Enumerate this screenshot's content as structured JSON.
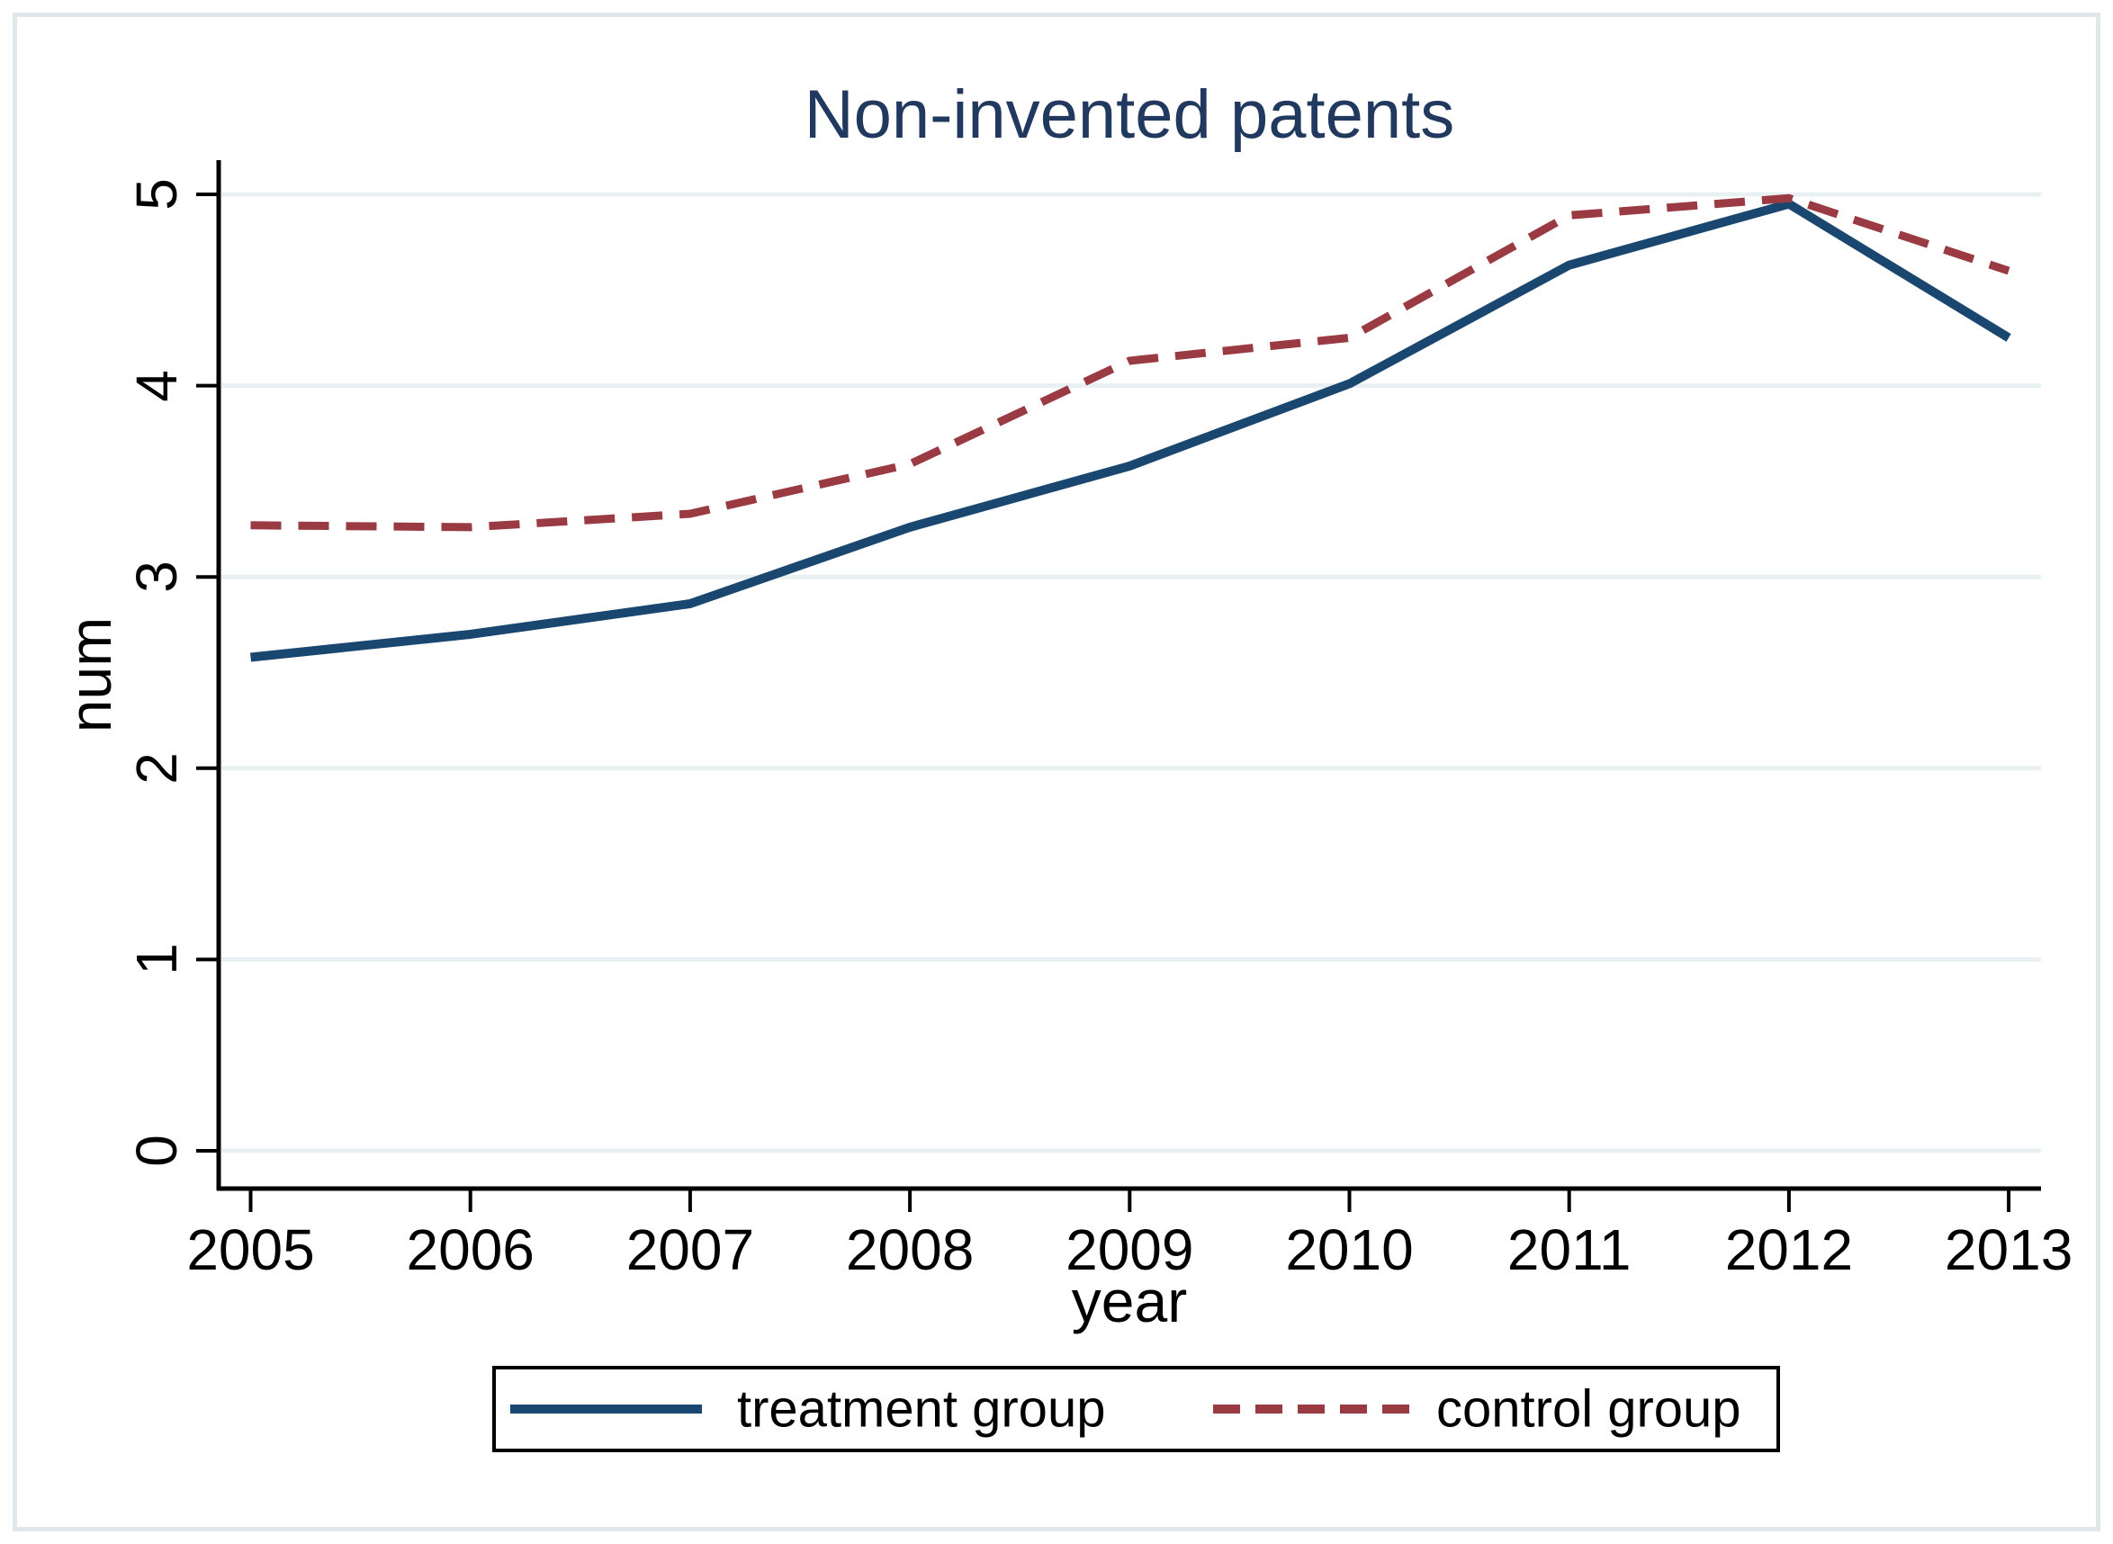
{
  "title": "Non-invented patents",
  "chart_data": {
    "type": "line",
    "title": "Non-invented patents",
    "xlabel": "year",
    "ylabel": "num",
    "categories": [
      "2005",
      "2006",
      "2007",
      "2008",
      "2009",
      "2010",
      "2011",
      "2012",
      "2013"
    ],
    "x": [
      2005,
      2006,
      2007,
      2008,
      2009,
      2010,
      2011,
      2012,
      2013
    ],
    "y_ticks": [
      0,
      1,
      2,
      3,
      4,
      5
    ],
    "y_tick_labels": [
      "0",
      "1",
      "2",
      "3",
      "4",
      "5"
    ],
    "ylim": [
      0,
      5
    ],
    "grid": true,
    "legend_position": "bottom-center",
    "series": [
      {
        "name": "treatment group",
        "line_style": "solid",
        "color": "#1a476f",
        "values": [
          2.58,
          2.7,
          2.86,
          3.26,
          3.58,
          4.01,
          4.63,
          4.95,
          4.25
        ]
      },
      {
        "name": "control group",
        "line_style": "dashed",
        "color": "#9a3a42",
        "values": [
          3.27,
          3.26,
          3.33,
          3.59,
          4.13,
          4.25,
          4.89,
          4.98,
          4.6
        ]
      }
    ]
  },
  "colors": {
    "treatment_line": "#1a476f",
    "control_line": "#9a3a42",
    "gridline": "#e8f0f2",
    "axis": "#000000",
    "title_text": "#21395e",
    "tick_text": "#000000",
    "figure_border": "#dfe9ec",
    "background": "#ffffff"
  }
}
